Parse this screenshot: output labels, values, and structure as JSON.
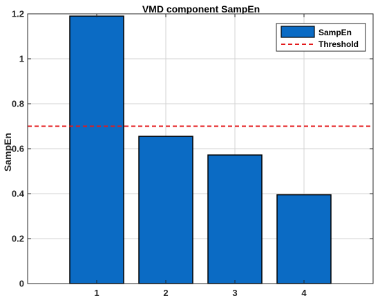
{
  "chart_data": {
    "type": "bar",
    "title": "VMD component SampEn",
    "xlabel": "",
    "ylabel": "SampEn",
    "categories": [
      "1",
      "2",
      "3",
      "4"
    ],
    "series": [
      {
        "name": "SampEn",
        "values": [
          1.19,
          0.655,
          0.572,
          0.395
        ]
      }
    ],
    "threshold": {
      "name": "Threshold",
      "value": 0.7
    },
    "xlim": [
      0,
      5
    ],
    "ylim": [
      0,
      1.2
    ],
    "yticks": [
      "0",
      "0.2",
      "0.4",
      "0.6",
      "0.8",
      "1",
      "1.2"
    ],
    "grid": true,
    "legend_position": "top-right",
    "colors": {
      "bar": "#0b6bc4",
      "bar_edge": "#000000",
      "threshold": "#e31a1c",
      "grid": "#d3d3d3",
      "axis": "#262626"
    }
  }
}
